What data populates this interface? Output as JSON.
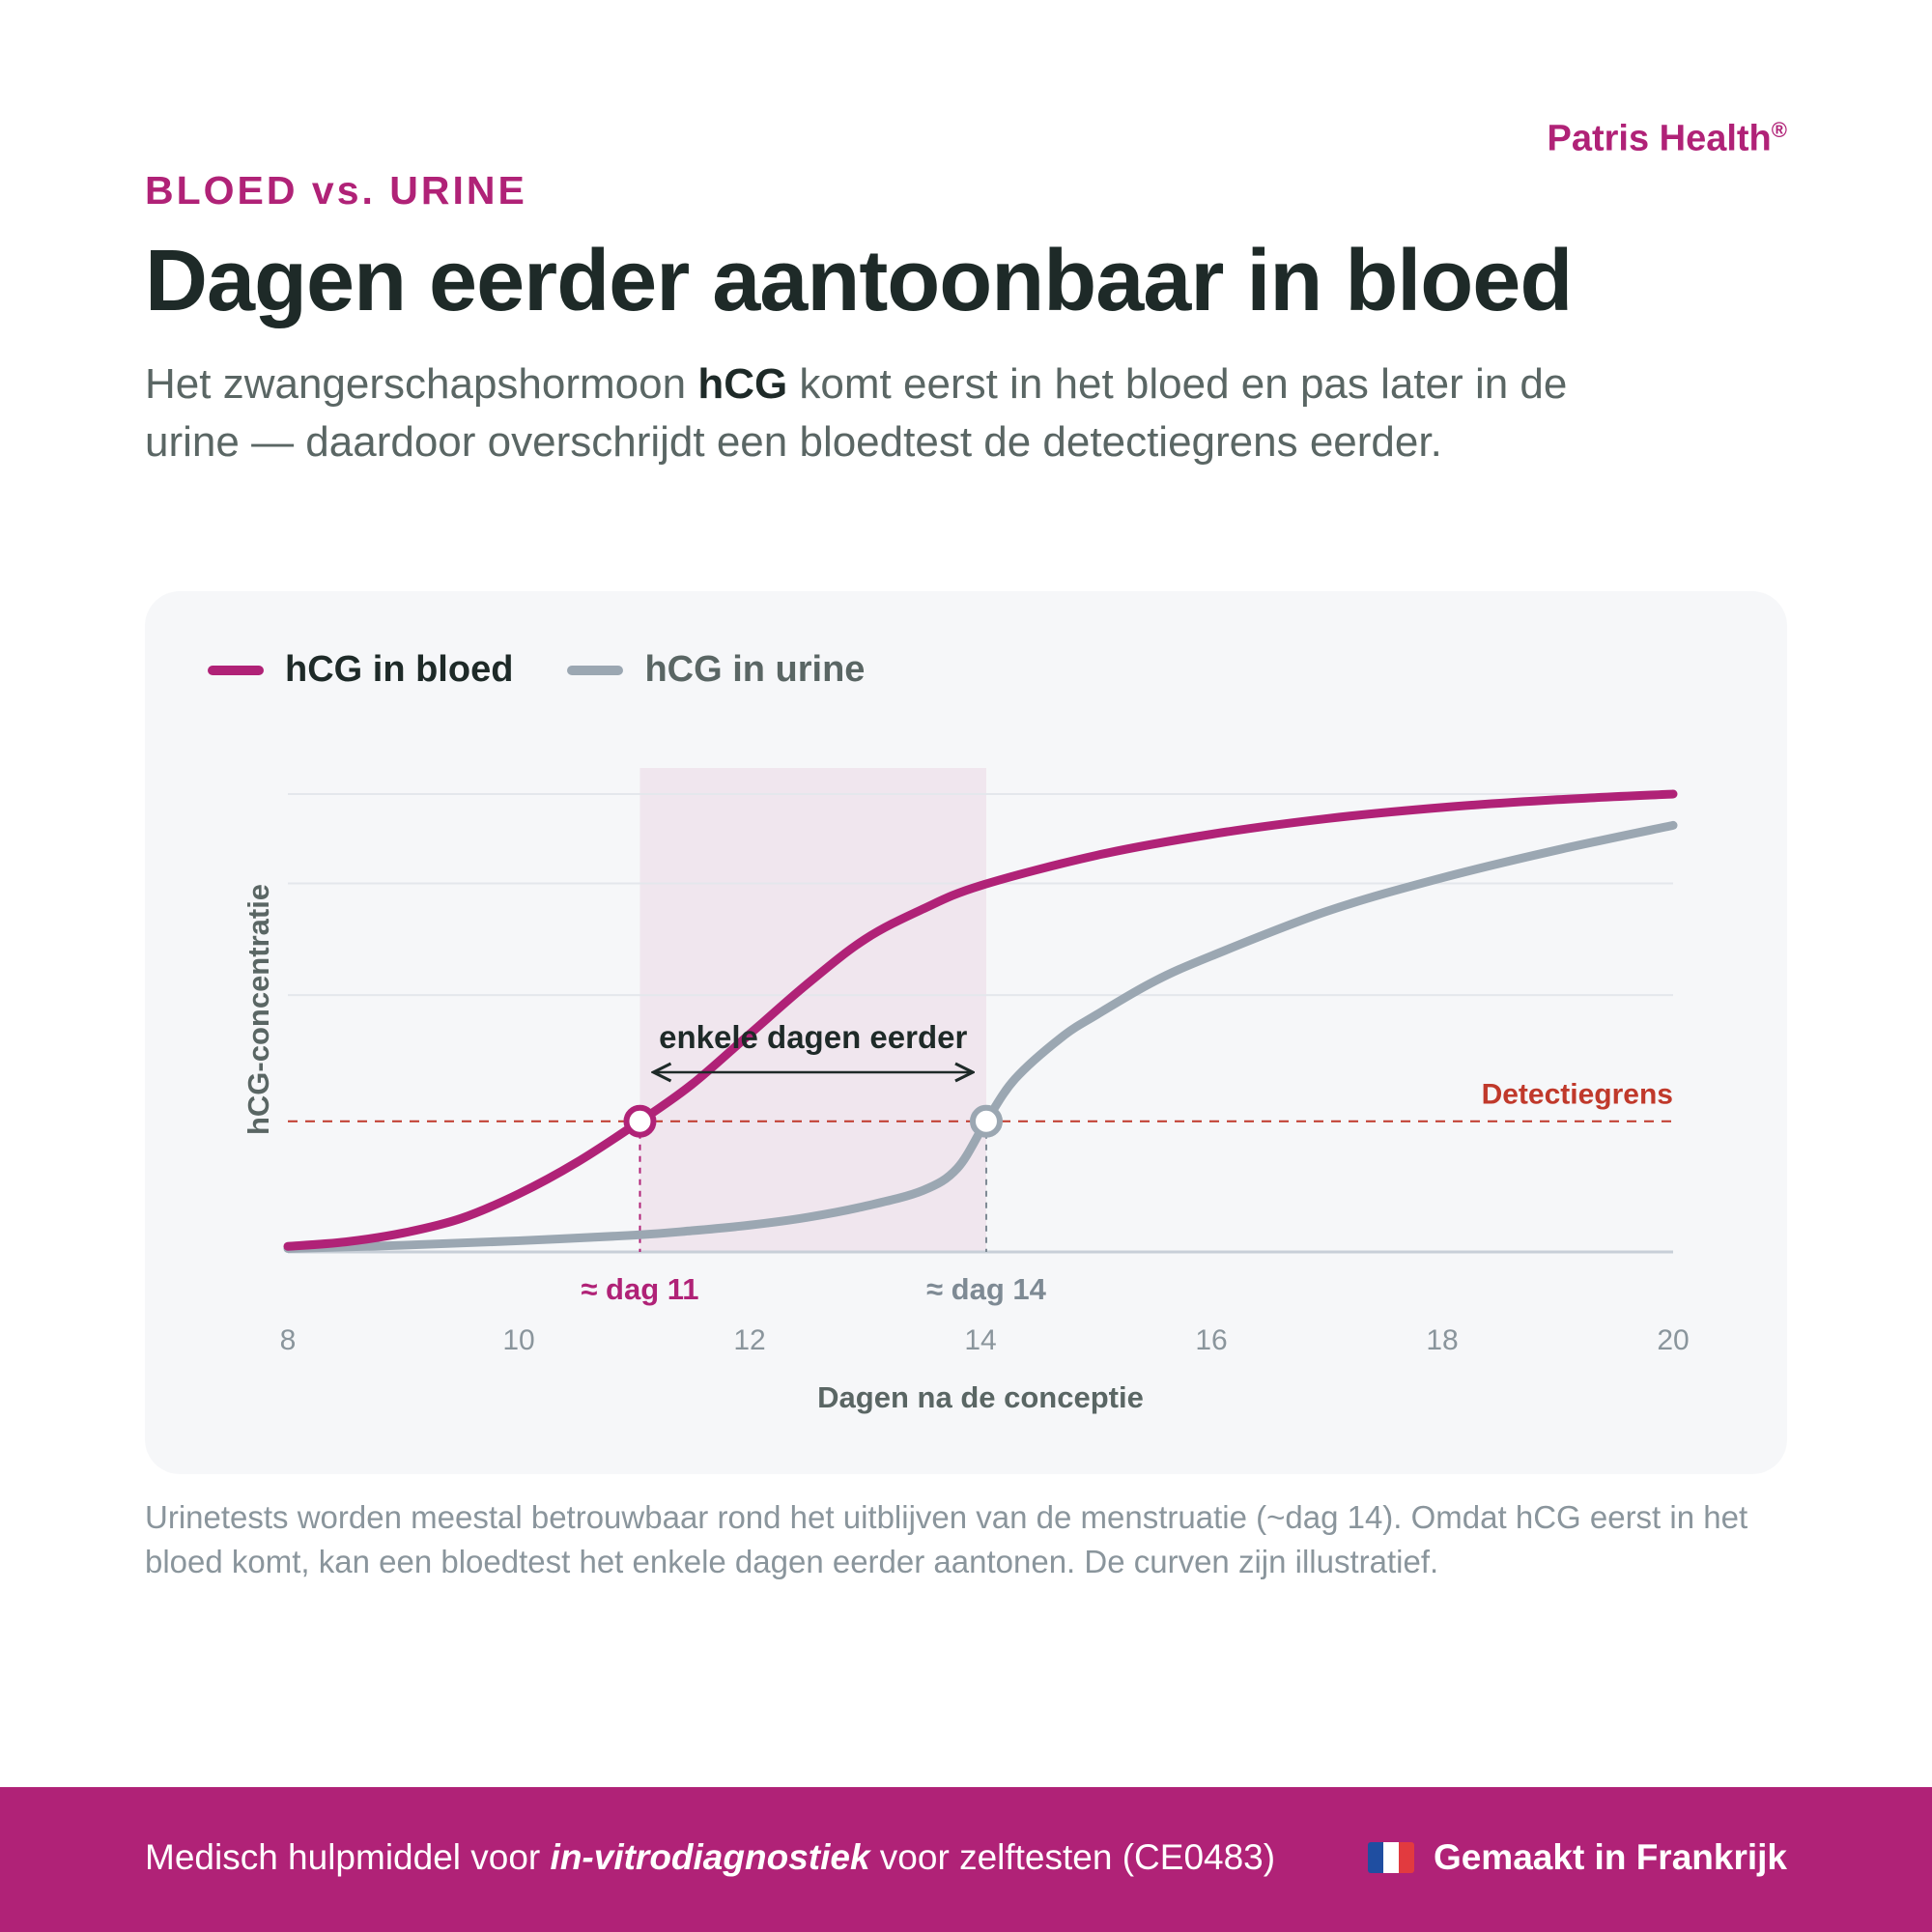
{
  "brand": {
    "name": "Patris Health",
    "mark": "®"
  },
  "eyebrow": "BLOED vs. URINE",
  "headline": "Dagen eerder aantoonbaar in bloed",
  "intro": {
    "before": "Het zwangerschapshormoon ",
    "bold": "hCG",
    "after": " komt eerst in het bloed en pas later in de urine — daardoor overschrijdt een bloedtest de detectiegrens eerder."
  },
  "colors": {
    "accent": "#b02277",
    "urine": "#9ba7b2",
    "threshold": "#c0392b",
    "text_dark": "#1e2a28"
  },
  "chart_data": {
    "type": "line",
    "xlabel": "Dagen na de conceptie",
    "ylabel": "hCG-concentratie",
    "xlim": [
      8,
      20
    ],
    "ylim": [
      0,
      4.1
    ],
    "xticks": [
      8,
      10,
      12,
      14,
      16,
      18,
      20
    ],
    "grid": "horizontal",
    "legend_position": "top-left",
    "threshold": {
      "label": "Detectiegrens",
      "value": 1.17
    },
    "series": [
      {
        "name": "hCG in bloed",
        "color": "#b02277",
        "x": [
          8,
          8.5,
          9,
          9.5,
          10,
          10.5,
          11.05,
          11.5,
          12,
          12.5,
          13,
          13.5,
          14,
          15,
          16,
          17,
          18,
          19,
          20
        ],
        "y": [
          0.05,
          0.09,
          0.17,
          0.3,
          0.52,
          0.8,
          1.17,
          1.5,
          1.95,
          2.4,
          2.8,
          3.07,
          3.28,
          3.55,
          3.74,
          3.88,
          3.98,
          4.05,
          4.1
        ]
      },
      {
        "name": "hCG in urine",
        "color": "#9ba7b2",
        "x": [
          8,
          9,
          10,
          11,
          11.5,
          12,
          12.5,
          13,
          13.5,
          13.8,
          14.05,
          14.3,
          14.7,
          15,
          15.5,
          16,
          17,
          18,
          19,
          20
        ],
        "y": [
          0.03,
          0.06,
          0.1,
          0.15,
          0.19,
          0.24,
          0.31,
          0.41,
          0.55,
          0.75,
          1.17,
          1.55,
          1.92,
          2.12,
          2.42,
          2.65,
          3.05,
          3.35,
          3.6,
          3.82
        ]
      }
    ],
    "markers": [
      {
        "x": 11.05,
        "label": "≈ dag 11",
        "color": "#b02277"
      },
      {
        "x": 14.05,
        "label": "≈ dag 14",
        "color": "#7e8a94"
      }
    ],
    "window": {
      "from": 11.05,
      "to": 14.05,
      "label": "enkele dagen eerder"
    }
  },
  "note": "Urinetests worden meestal betrouwbaar rond het uitblijven van de menstruatie (~dag 14). Omdat hCG eerst in het bloed komt, kan een bloedtest het enkele dagen eerder aantonen. De curven zijn illustratief.",
  "footer": {
    "left_before": "Medisch hulpmiddel voor ",
    "left_em": "in-vitrodiagnostiek",
    "left_after": " voor zelftesten (CE0483)",
    "right": "Gemaakt in Frankrijk",
    "flag_icon": "france-flag-icon"
  }
}
